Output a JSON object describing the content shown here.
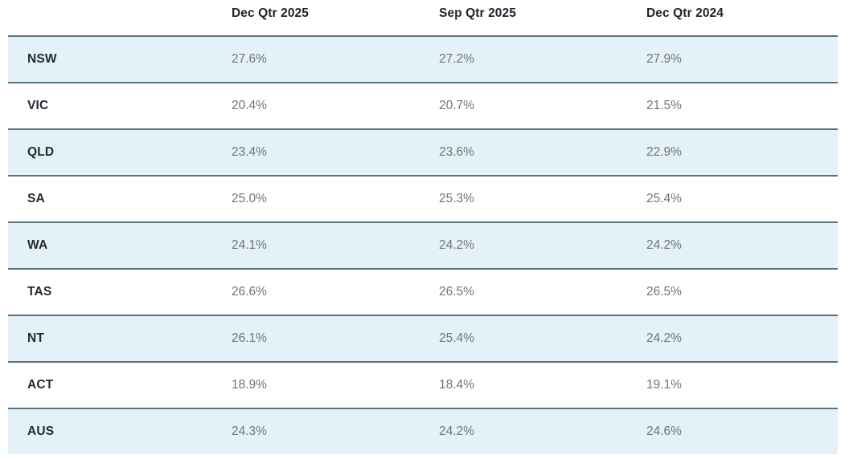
{
  "chart_data": {
    "type": "table",
    "title": "",
    "columns": [
      "",
      "Dec Qtr 2025",
      "Sep Qtr 2025",
      "Dec Qtr 2024"
    ],
    "rows": [
      {
        "label": "NSW",
        "values": [
          "27.6%",
          "27.2%",
          "27.9%"
        ]
      },
      {
        "label": "VIC",
        "values": [
          "20.4%",
          "20.7%",
          "21.5%"
        ]
      },
      {
        "label": "QLD",
        "values": [
          "23.4%",
          "23.6%",
          "22.9%"
        ]
      },
      {
        "label": "SA",
        "values": [
          "25.0%",
          "25.3%",
          "25.4%"
        ]
      },
      {
        "label": "WA",
        "values": [
          "24.1%",
          "24.2%",
          "24.2%"
        ]
      },
      {
        "label": "TAS",
        "values": [
          "26.6%",
          "26.5%",
          "26.5%"
        ]
      },
      {
        "label": "NT",
        "values": [
          "26.1%",
          "25.4%",
          "24.2%"
        ]
      },
      {
        "label": "ACT",
        "values": [
          "18.9%",
          "18.4%",
          "19.1%"
        ]
      },
      {
        "label": "AUS",
        "values": [
          "24.3%",
          "24.2%",
          "24.6%"
        ]
      }
    ],
    "layout": {
      "striped_rows": "odd data rows (NSW, QLD, WA, NT, AUS) highlighted",
      "grid": "horizontal rules only"
    },
    "colors": {
      "stripe": "#e4f1f9",
      "border": "#5c717e",
      "header_text": "#1b242d",
      "label_text": "#222b33",
      "value_text": "#6e7478",
      "background": "#ffffff"
    }
  }
}
